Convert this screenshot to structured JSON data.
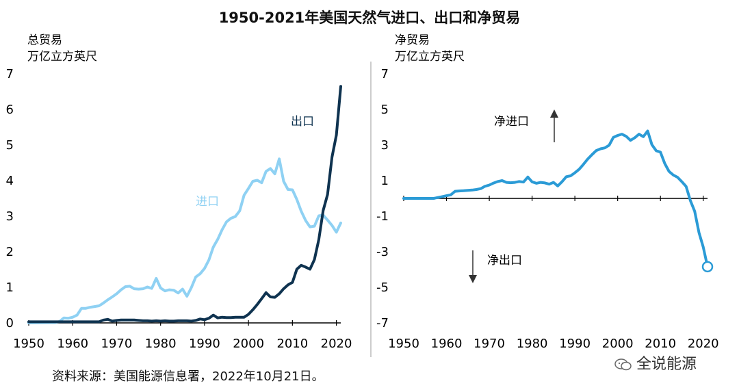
{
  "title": "1950-2021年美国天然气进口、出口和净贸易",
  "source": "资料来源：美国能源信息署，2022年10月21日。",
  "watermark": "全说能源",
  "colors": {
    "import": "#8fd1f3",
    "export": "#0f3350",
    "net": "#2b9bd6",
    "axis": "#000000"
  },
  "chart_data": [
    {
      "type": "line",
      "label_line1": "总贸易",
      "label_line2": "万亿立方英尺",
      "xlim": [
        1950,
        2021
      ],
      "ylim": [
        0,
        7
      ],
      "x_ticks": [
        1950,
        1960,
        1970,
        1980,
        1990,
        2000,
        2010,
        2020
      ],
      "y_ticks": [
        0,
        1,
        2,
        3,
        4,
        5,
        6,
        7
      ],
      "series": [
        {
          "name": "进口",
          "x": [
            1950,
            1955,
            1956,
            1957,
            1958,
            1959,
            1960,
            1961,
            1962,
            1963,
            1964,
            1965,
            1966,
            1967,
            1968,
            1969,
            1970,
            1971,
            1972,
            1973,
            1974,
            1975,
            1976,
            1977,
            1978,
            1979,
            1980,
            1981,
            1982,
            1983,
            1984,
            1985,
            1986,
            1987,
            1988,
            1989,
            1990,
            1991,
            1992,
            1993,
            1994,
            1995,
            1996,
            1997,
            1998,
            1999,
            2000,
            2001,
            2002,
            2003,
            2004,
            2005,
            2006,
            2007,
            2008,
            2009,
            2010,
            2011,
            2012,
            2013,
            2014,
            2015,
            2016,
            2017,
            2018,
            2019,
            2020,
            2021
          ],
          "y": [
            0,
            0.01,
            0.01,
            0.04,
            0.14,
            0.13,
            0.16,
            0.22,
            0.41,
            0.41,
            0.44,
            0.46,
            0.48,
            0.56,
            0.65,
            0.73,
            0.82,
            0.93,
            1.02,
            1.03,
            0.96,
            0.95,
            0.96,
            1.01,
            0.97,
            1.25,
            0.98,
            0.9,
            0.93,
            0.92,
            0.84,
            0.95,
            0.75,
            0.99,
            1.29,
            1.38,
            1.53,
            1.77,
            2.13,
            2.35,
            2.62,
            2.84,
            2.94,
            2.99,
            3.15,
            3.59,
            3.78,
            3.98,
            4.01,
            3.94,
            4.26,
            4.34,
            4.19,
            4.61,
            3.98,
            3.75,
            3.74,
            3.47,
            3.14,
            2.88,
            2.7,
            2.72,
            3.01,
            3.03,
            2.89,
            2.74,
            2.55,
            2.81
          ]
        },
        {
          "name": "出口",
          "x": [
            1950,
            1960,
            1965,
            1966,
            1967,
            1968,
            1969,
            1970,
            1971,
            1972,
            1973,
            1974,
            1975,
            1976,
            1977,
            1978,
            1979,
            1980,
            1981,
            1982,
            1983,
            1984,
            1985,
            1986,
            1987,
            1988,
            1989,
            1990,
            1991,
            1992,
            1993,
            1994,
            1995,
            1996,
            1997,
            1998,
            1999,
            2000,
            2001,
            2002,
            2003,
            2004,
            2005,
            2006,
            2007,
            2008,
            2009,
            2010,
            2011,
            2012,
            2013,
            2014,
            2015,
            2016,
            2017,
            2018,
            2019,
            2020,
            2021
          ],
          "y": [
            0.03,
            0.03,
            0.03,
            0.03,
            0.08,
            0.1,
            0.05,
            0.07,
            0.08,
            0.08,
            0.08,
            0.08,
            0.07,
            0.06,
            0.06,
            0.05,
            0.06,
            0.05,
            0.06,
            0.05,
            0.05,
            0.06,
            0.06,
            0.06,
            0.05,
            0.07,
            0.11,
            0.09,
            0.13,
            0.22,
            0.14,
            0.16,
            0.15,
            0.15,
            0.16,
            0.16,
            0.16,
            0.24,
            0.37,
            0.52,
            0.68,
            0.85,
            0.73,
            0.72,
            0.82,
            0.96,
            1.07,
            1.14,
            1.51,
            1.62,
            1.57,
            1.51,
            1.78,
            2.34,
            3.16,
            3.61,
            4.66,
            5.28,
            6.65
          ]
        }
      ],
      "annotations": [
        "进口",
        "出口"
      ]
    },
    {
      "type": "line",
      "label_line1": "净贸易",
      "label_line2": "万亿立方英尺",
      "xlim": [
        1950,
        2021
      ],
      "ylim": [
        -7,
        7
      ],
      "x_ticks": [
        1950,
        1960,
        1970,
        1980,
        1990,
        2000,
        2010,
        2020
      ],
      "y_ticks": [
        7,
        5,
        3,
        1,
        -1,
        -3,
        -5,
        -7
      ],
      "series": [
        {
          "name": "净进口",
          "x": [
            1950,
            1955,
            1957,
            1958,
            1959,
            1960,
            1961,
            1962,
            1963,
            1964,
            1965,
            1966,
            1967,
            1968,
            1969,
            1970,
            1971,
            1972,
            1973,
            1974,
            1975,
            1976,
            1977,
            1978,
            1979,
            1980,
            1981,
            1982,
            1983,
            1984,
            1985,
            1986,
            1987,
            1988,
            1989,
            1990,
            1991,
            1992,
            1993,
            1994,
            1995,
            1996,
            1997,
            1998,
            1999,
            2000,
            2001,
            2002,
            2003,
            2004,
            2005,
            2006,
            2007,
            2008,
            2009,
            2010,
            2011,
            2012,
            2013,
            2014,
            2015,
            2016,
            2017,
            2018,
            2019,
            2020,
            2021
          ],
          "y": [
            0,
            0,
            0,
            0.05,
            0.1,
            0.15,
            0.2,
            0.4,
            0.42,
            0.43,
            0.45,
            0.47,
            0.5,
            0.55,
            0.68,
            0.75,
            0.86,
            0.95,
            1.0,
            0.9,
            0.88,
            0.9,
            0.95,
            0.92,
            1.2,
            0.93,
            0.85,
            0.9,
            0.87,
            0.8,
            0.9,
            0.7,
            0.94,
            1.22,
            1.27,
            1.44,
            1.64,
            1.91,
            2.21,
            2.46,
            2.69,
            2.79,
            2.84,
            2.99,
            3.43,
            3.54,
            3.61,
            3.49,
            3.26,
            3.41,
            3.61,
            3.47,
            3.79,
            3.02,
            2.68,
            2.6,
            1.96,
            1.52,
            1.31,
            1.19,
            0.94,
            0.67,
            -0.13,
            -0.72,
            -1.92,
            -2.73,
            -3.84
          ]
        }
      ],
      "annotations": [
        "净进口",
        "净出口"
      ]
    }
  ]
}
